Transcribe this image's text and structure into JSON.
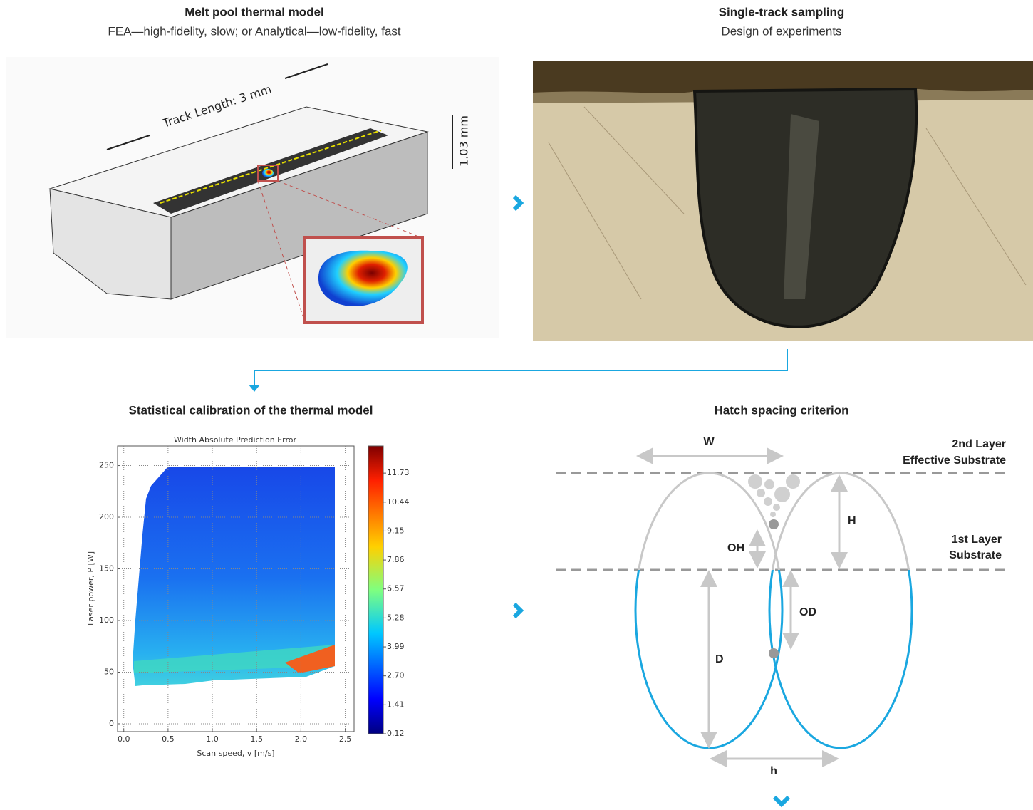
{
  "panels": [
    {
      "title": "Melt pool thermal model",
      "subtitle": "FEA—high-fidelity, slow; or Analytical—low-fidelity, fast",
      "annotations": [
        "Track Length: 3 mm",
        "1.03 mm"
      ]
    },
    {
      "title": "Single-track sampling",
      "subtitle": "Design of experiments"
    },
    {
      "title": "Statistical calibration of the thermal model"
    },
    {
      "title": "Hatch spacing criterion",
      "labels": [
        "W",
        "2nd Layer",
        "Effective Substrate",
        "H",
        "OH",
        "1st Layer",
        "Substrate",
        "OD",
        "D",
        "h"
      ]
    }
  ],
  "plot": {
    "type": "contour",
    "title": "Width Absolute Prediction Error",
    "x_label": "Scan speed, v [m/s]",
    "y_label": "Laser power, P [W]",
    "xlim": [
      -0.07,
      2.6
    ],
    "xticks": [
      {
        "value": 0,
        "label": "0.0"
      },
      0.5,
      {
        "value": 1,
        "label": "1.0"
      },
      1.5,
      {
        "value": 2,
        "label": "2.0"
      },
      2.5
    ],
    "ylim": [
      -7.6,
      269
    ],
    "yticks": [
      0,
      50,
      100,
      150,
      200,
      250
    ],
    "colorbar": {
      "lim": [
        0.12,
        12.94
      ],
      "ticks": [
        0.12,
        1.41,
        {
          "value": 2.7,
          "label": "2.70"
        },
        3.99,
        5.28,
        6.57,
        7.86,
        9.15,
        10.44,
        11.73
      ]
    }
  }
}
